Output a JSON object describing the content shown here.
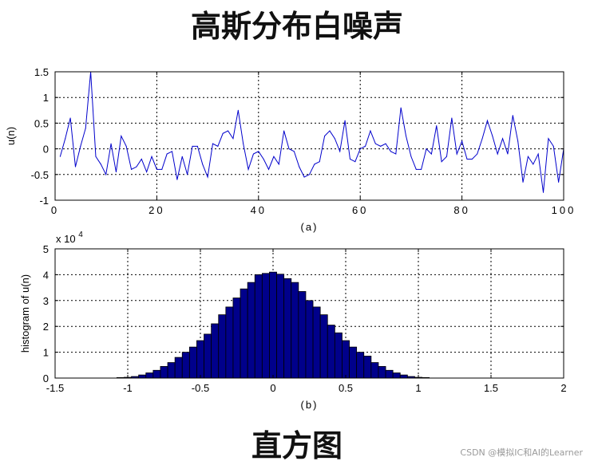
{
  "title_top": "高斯分布白噪声",
  "title_bottom": "直方图",
  "watermark": "CSDN @模拟IC和AI的Learner",
  "colors": {
    "line": "#0000cc",
    "bar_fill": "#00008b",
    "bar_edge": "#000000",
    "grid": "#000000"
  },
  "chart_data": [
    {
      "type": "line",
      "caption": "(a)",
      "ylabel": "u(n)",
      "xlabel": "",
      "xlim": [
        0,
        100
      ],
      "ylim": [
        -1,
        1.5
      ],
      "xticks": [
        "0",
        "20",
        "40",
        "60",
        "80",
        "100"
      ],
      "yticks": [
        "-1",
        "-0.5",
        "0",
        "0.5",
        "1",
        "1.5"
      ],
      "grid": true,
      "series": [
        {
          "x": [
            1,
            2,
            3,
            4,
            5,
            6,
            7,
            8,
            9,
            10,
            11,
            12,
            13,
            14,
            15,
            16,
            17,
            18,
            19,
            20,
            21,
            22,
            23,
            24,
            25,
            26,
            27,
            28,
            29,
            30,
            31,
            32,
            33,
            34,
            35,
            36,
            37,
            38,
            39,
            40,
            41,
            42,
            43,
            44,
            45,
            46,
            47,
            48,
            49,
            50,
            51,
            52,
            53,
            54,
            55,
            56,
            57,
            58,
            59,
            60,
            61,
            62,
            63,
            64,
            65,
            66,
            67,
            68,
            69,
            70,
            71,
            72,
            73,
            74,
            75,
            76,
            77,
            78,
            79,
            80,
            81,
            82,
            83,
            84,
            85,
            86,
            87,
            88,
            89,
            90,
            91,
            92,
            93,
            94,
            95,
            96,
            97,
            98,
            99,
            100
          ],
          "values": [
            -0.15,
            0.2,
            0.6,
            -0.35,
            0.05,
            0.4,
            1.5,
            -0.15,
            -0.3,
            -0.5,
            0.1,
            -0.45,
            0.25,
            0.05,
            -0.4,
            -0.35,
            -0.2,
            -0.45,
            -0.15,
            -0.4,
            -0.4,
            -0.1,
            -0.05,
            -0.6,
            -0.15,
            -0.5,
            0.05,
            0.05,
            -0.3,
            -0.55,
            0.1,
            0.05,
            0.3,
            0.35,
            0.2,
            0.75,
            0.1,
            -0.4,
            -0.1,
            -0.05,
            -0.2,
            -0.4,
            -0.15,
            -0.3,
            0.35,
            0.0,
            -0.05,
            -0.35,
            -0.55,
            -0.5,
            -0.3,
            -0.25,
            0.25,
            0.35,
            0.2,
            -0.05,
            0.55,
            -0.2,
            -0.25,
            0.0,
            0.05,
            0.35,
            0.1,
            0.05,
            0.1,
            -0.05,
            -0.1,
            0.8,
            0.25,
            -0.15,
            -0.4,
            -0.4,
            0.0,
            -0.1,
            0.45,
            -0.25,
            -0.15,
            0.6,
            -0.1,
            0.15,
            -0.2,
            -0.2,
            -0.1,
            0.2,
            0.55,
            0.25,
            -0.1,
            0.2,
            -0.1,
            0.65,
            0.15,
            -0.65,
            -0.15,
            -0.3,
            -0.1,
            -0.85,
            0.2,
            0.05,
            -0.65,
            0.0
          ]
        }
      ]
    },
    {
      "type": "bar",
      "caption": "(b)",
      "ylabel": "histogram of u(n)",
      "xlabel": "",
      "exponent_prefix": "x 10",
      "exponent_power": "4",
      "xlim": [
        -1.5,
        2
      ],
      "ylim": [
        0,
        5
      ],
      "xticks": [
        "-1.5",
        "-1",
        "-0.5",
        "0",
        "0.5",
        "1",
        "1.5",
        "2"
      ],
      "yticks": [
        "0",
        "1",
        "2",
        "3",
        "4",
        "5"
      ],
      "grid": true,
      "bin_width": 0.05,
      "bin_centers": [
        -1.05,
        -1.0,
        -0.95,
        -0.9,
        -0.85,
        -0.8,
        -0.75,
        -0.7,
        -0.65,
        -0.6,
        -0.55,
        -0.5,
        -0.45,
        -0.4,
        -0.35,
        -0.3,
        -0.25,
        -0.2,
        -0.15,
        -0.1,
        -0.05,
        0.0,
        0.05,
        0.1,
        0.15,
        0.2,
        0.25,
        0.3,
        0.35,
        0.4,
        0.45,
        0.5,
        0.55,
        0.6,
        0.65,
        0.7,
        0.75,
        0.8,
        0.85,
        0.9,
        0.95,
        1.0,
        1.05
      ],
      "values": [
        0.02,
        0.03,
        0.06,
        0.12,
        0.2,
        0.3,
        0.45,
        0.6,
        0.8,
        1.0,
        1.2,
        1.45,
        1.7,
        2.1,
        2.45,
        2.75,
        3.1,
        3.45,
        3.7,
        4.0,
        4.05,
        4.1,
        4.02,
        3.85,
        3.7,
        3.35,
        3.0,
        2.75,
        2.45,
        2.05,
        1.75,
        1.45,
        1.2,
        1.0,
        0.85,
        0.6,
        0.45,
        0.3,
        0.2,
        0.12,
        0.06,
        0.03,
        0.02
      ]
    }
  ]
}
